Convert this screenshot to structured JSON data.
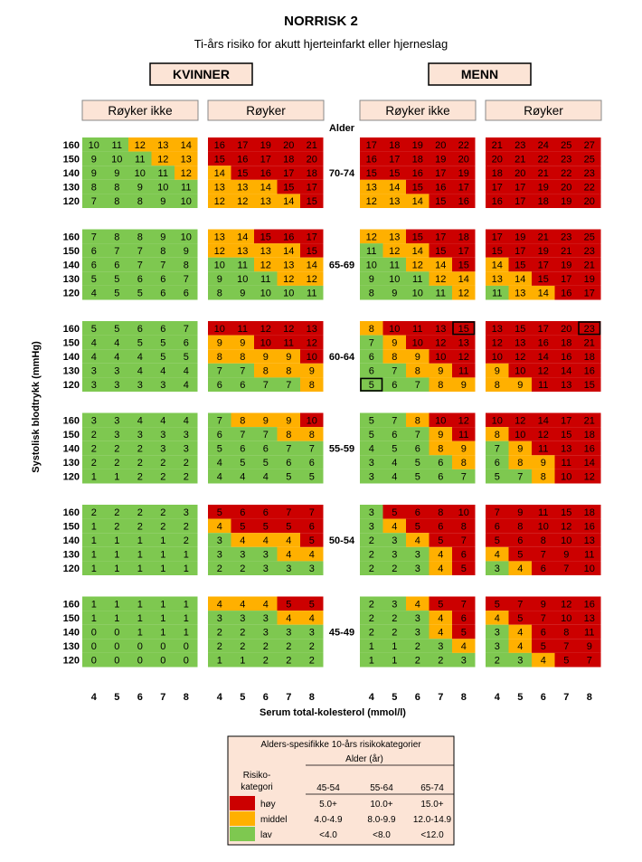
{
  "title": "NORRISK 2",
  "subtitle": "Ti-års risiko for akutt hjerteinfarkt eller hjerneslag",
  "genders": [
    "KVINNER",
    "MENN"
  ],
  "smoking": [
    "Røyker ikke",
    "Røyker"
  ],
  "age_heading": "Alder",
  "ylabel": "Systolisk blodtrykk (mmHg)",
  "xlabel": "Serum total-kolesterol (mmol/l)",
  "colors": {
    "high": "#cc0000",
    "mid": "#ffb000",
    "low": "#7ec850",
    "header_fill": "#fce4d6"
  },
  "legend": {
    "title": "Alders-spesifikke 10-års risikokategorier",
    "age_label": "Alder (år)",
    "category_label": [
      "Risiko-",
      "kategori"
    ],
    "age_groups": [
      "45-54",
      "55-64",
      "65-74"
    ],
    "rows": [
      {
        "label": "høy",
        "level": "high",
        "values": [
          "5.0+",
          "10.0+",
          "15.0+"
        ]
      },
      {
        "label": "middel",
        "level": "mid",
        "values": [
          "4.0-4.9",
          "8.0-9.9",
          "12.0-14.9"
        ]
      },
      {
        "label": "lav",
        "level": "low",
        "values": [
          "<4.0",
          "<8.0",
          "<12.0"
        ]
      }
    ]
  },
  "chart_data": {
    "type": "heatmap",
    "title": "NORRISK 2",
    "subtitle": "Ti-års risiko for akutt hjerteinfarkt eller hjerneslag",
    "xlabel": "Serum total-kolesterol (mmol/l)",
    "ylabel": "Systolisk blodtrykk (mmHg)",
    "x": [
      4,
      5,
      6,
      7,
      8
    ],
    "y": [
      160,
      150,
      140,
      130,
      120
    ],
    "panels": [
      "Kvinner – Røyker ikke",
      "Kvinner – Røyker",
      "Menn – Røyker ikke",
      "Menn – Røyker"
    ],
    "age_groups": [
      {
        "age": "70-74",
        "thresholds": [
          12,
          15
        ],
        "panels": [
          [
            [
              10,
              11,
              12,
              13,
              14
            ],
            [
              9,
              10,
              11,
              12,
              13
            ],
            [
              9,
              9,
              10,
              11,
              12
            ],
            [
              8,
              8,
              9,
              10,
              11
            ],
            [
              7,
              8,
              8,
              9,
              10
            ]
          ],
          [
            [
              16,
              17,
              19,
              20,
              21
            ],
            [
              15,
              16,
              17,
              18,
              20
            ],
            [
              14,
              15,
              16,
              17,
              18
            ],
            [
              13,
              13,
              14,
              15,
              17
            ],
            [
              12,
              12,
              13,
              14,
              15
            ]
          ],
          [
            [
              17,
              18,
              19,
              20,
              22
            ],
            [
              16,
              17,
              18,
              19,
              20
            ],
            [
              15,
              15,
              16,
              17,
              19
            ],
            [
              13,
              14,
              15,
              16,
              17
            ],
            [
              12,
              13,
              14,
              15,
              16
            ]
          ],
          [
            [
              21,
              23,
              24,
              25,
              27
            ],
            [
              20,
              21,
              22,
              23,
              25
            ],
            [
              18,
              20,
              21,
              22,
              23
            ],
            [
              17,
              17,
              19,
              20,
              22
            ],
            [
              16,
              17,
              18,
              19,
              20
            ]
          ]
        ]
      },
      {
        "age": "65-69",
        "thresholds": [
          12,
          15
        ],
        "panels": [
          [
            [
              7,
              8,
              8,
              9,
              10
            ],
            [
              6,
              7,
              7,
              8,
              9
            ],
            [
              6,
              6,
              7,
              7,
              8
            ],
            [
              5,
              5,
              6,
              6,
              7
            ],
            [
              4,
              5,
              5,
              6,
              6
            ]
          ],
          [
            [
              13,
              14,
              15,
              16,
              17
            ],
            [
              12,
              13,
              13,
              14,
              15
            ],
            [
              10,
              11,
              12,
              13,
              14
            ],
            [
              9,
              10,
              11,
              12,
              12
            ],
            [
              8,
              9,
              10,
              10,
              11
            ]
          ],
          [
            [
              12,
              13,
              15,
              17,
              18
            ],
            [
              11,
              12,
              14,
              15,
              17
            ],
            [
              10,
              11,
              12,
              14,
              15
            ],
            [
              9,
              10,
              11,
              12,
              14
            ],
            [
              8,
              9,
              10,
              11,
              12
            ]
          ],
          [
            [
              17,
              19,
              21,
              23,
              25
            ],
            [
              15,
              17,
              19,
              21,
              23
            ],
            [
              14,
              15,
              17,
              19,
              21
            ],
            [
              13,
              14,
              15,
              17,
              19
            ],
            [
              11,
              13,
              14,
              16,
              17
            ]
          ]
        ]
      },
      {
        "age": "60-64",
        "thresholds": [
          8,
          10
        ],
        "panels": [
          [
            [
              5,
              5,
              6,
              6,
              7
            ],
            [
              4,
              4,
              5,
              5,
              6
            ],
            [
              4,
              4,
              4,
              5,
              5
            ],
            [
              3,
              3,
              4,
              4,
              4
            ],
            [
              3,
              3,
              3,
              3,
              4
            ]
          ],
          [
            [
              10,
              11,
              12,
              12,
              13
            ],
            [
              9,
              9,
              10,
              11,
              12
            ],
            [
              8,
              8,
              9,
              9,
              10
            ],
            [
              7,
              7,
              8,
              8,
              9
            ],
            [
              6,
              6,
              7,
              7,
              8
            ]
          ],
          [
            [
              8,
              10,
              11,
              13,
              15
            ],
            [
              7,
              9,
              10,
              12,
              13
            ],
            [
              6,
              8,
              9,
              10,
              12
            ],
            [
              6,
              7,
              8,
              9,
              11
            ],
            [
              5,
              6,
              7,
              8,
              9
            ]
          ],
          [
            [
              13,
              15,
              17,
              20,
              23
            ],
            [
              12,
              13,
              16,
              18,
              21
            ],
            [
              10,
              12,
              14,
              16,
              18
            ],
            [
              9,
              10,
              12,
              14,
              16
            ],
            [
              8,
              9,
              11,
              13,
              15
            ]
          ]
        ]
      },
      {
        "age": "55-59",
        "thresholds": [
          8,
          10
        ],
        "panels": [
          [
            [
              3,
              3,
              4,
              4,
              4
            ],
            [
              2,
              3,
              3,
              3,
              3
            ],
            [
              2,
              2,
              2,
              3,
              3
            ],
            [
              2,
              2,
              2,
              2,
              2
            ],
            [
              1,
              1,
              2,
              2,
              2
            ]
          ],
          [
            [
              7,
              8,
              9,
              9,
              10
            ],
            [
              6,
              7,
              7,
              8,
              8
            ],
            [
              5,
              6,
              6,
              7,
              7
            ],
            [
              4,
              5,
              5,
              6,
              6
            ],
            [
              4,
              4,
              4,
              5,
              5
            ]
          ],
          [
            [
              5,
              7,
              8,
              10,
              12
            ],
            [
              5,
              6,
              7,
              9,
              11
            ],
            [
              4,
              5,
              6,
              8,
              9
            ],
            [
              3,
              4,
              5,
              6,
              8
            ],
            [
              3,
              4,
              5,
              6,
              7
            ]
          ],
          [
            [
              10,
              12,
              14,
              17,
              21
            ],
            [
              8,
              10,
              12,
              15,
              18
            ],
            [
              7,
              9,
              11,
              13,
              16
            ],
            [
              6,
              8,
              9,
              11,
              14
            ],
            [
              5,
              7,
              8,
              10,
              12
            ]
          ]
        ]
      },
      {
        "age": "50-54",
        "thresholds": [
          4,
          5
        ],
        "panels": [
          [
            [
              2,
              2,
              2,
              2,
              3
            ],
            [
              1,
              2,
              2,
              2,
              2
            ],
            [
              1,
              1,
              1,
              1,
              2
            ],
            [
              1,
              1,
              1,
              1,
              1
            ],
            [
              1,
              1,
              1,
              1,
              1
            ]
          ],
          [
            [
              5,
              6,
              6,
              7,
              7
            ],
            [
              4,
              5,
              5,
              5,
              6
            ],
            [
              3,
              4,
              4,
              4,
              5
            ],
            [
              3,
              3,
              3,
              4,
              4
            ],
            [
              2,
              2,
              3,
              3,
              3
            ]
          ],
          [
            [
              3,
              5,
              6,
              8,
              10
            ],
            [
              3,
              4,
              5,
              6,
              8
            ],
            [
              2,
              3,
              4,
              5,
              7
            ],
            [
              2,
              3,
              3,
              4,
              6
            ],
            [
              2,
              2,
              3,
              4,
              5
            ]
          ],
          [
            [
              7,
              9,
              11,
              15,
              18
            ],
            [
              6,
              8,
              10,
              12,
              16
            ],
            [
              5,
              6,
              8,
              10,
              13
            ],
            [
              4,
              5,
              7,
              9,
              11
            ],
            [
              3,
              4,
              6,
              7,
              10
            ]
          ]
        ]
      },
      {
        "age": "45-49",
        "thresholds": [
          4,
          5
        ],
        "panels": [
          [
            [
              1,
              1,
              1,
              1,
              1
            ],
            [
              1,
              1,
              1,
              1,
              1
            ],
            [
              0,
              0,
              1,
              1,
              1
            ],
            [
              0,
              0,
              0,
              0,
              0
            ],
            [
              0,
              0,
              0,
              0,
              0
            ]
          ],
          [
            [
              4,
              4,
              4,
              5,
              5
            ],
            [
              3,
              3,
              3,
              4,
              4
            ],
            [
              2,
              2,
              3,
              3,
              3
            ],
            [
              2,
              2,
              2,
              2,
              2
            ],
            [
              1,
              1,
              2,
              2,
              2
            ]
          ],
          [
            [
              2,
              3,
              4,
              5,
              7
            ],
            [
              2,
              2,
              3,
              4,
              6
            ],
            [
              2,
              2,
              3,
              4,
              5
            ],
            [
              1,
              1,
              2,
              3,
              4
            ],
            [
              1,
              1,
              2,
              2,
              3
            ]
          ],
          [
            [
              5,
              7,
              9,
              12,
              16
            ],
            [
              4,
              5,
              7,
              10,
              13
            ],
            [
              3,
              4,
              6,
              8,
              11
            ],
            [
              3,
              4,
              5,
              7,
              9
            ],
            [
              2,
              3,
              4,
              5,
              7
            ]
          ]
        ]
      }
    ],
    "outlined_cells": [
      {
        "age": "60-64",
        "panel": 2,
        "row": 0,
        "col": 4
      },
      {
        "age": "60-64",
        "panel": 3,
        "row": 0,
        "col": 4
      },
      {
        "age": "60-64",
        "panel": 2,
        "row": 4,
        "col": 0
      }
    ]
  }
}
